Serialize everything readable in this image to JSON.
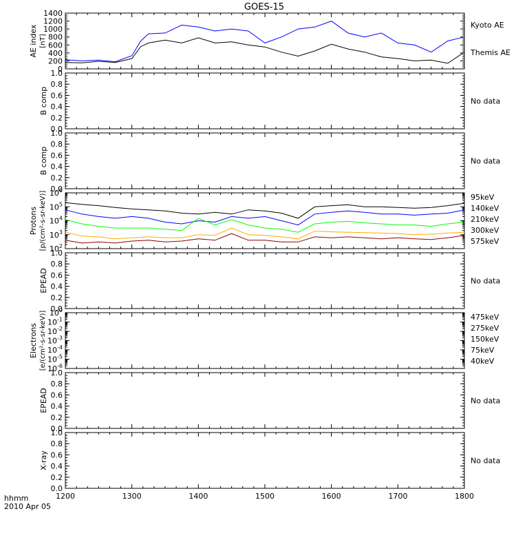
{
  "title": "GOES-15",
  "x_axis": {
    "tick_labels": [
      "1200",
      "1300",
      "1400",
      "1500",
      "1600",
      "1700",
      "1800"
    ],
    "label_line1": "hhmm",
    "label_line2": "2010 Apr 05"
  },
  "chart_data": [
    {
      "type": "line",
      "panel": "ae",
      "ylabel_line1": "AE index",
      "ylabel_line2": "[nT]",
      "ylim": [
        0,
        1400
      ],
      "yticks": [
        0,
        200,
        400,
        600,
        800,
        1000,
        1200,
        1400
      ],
      "ytick_labels": [
        "0",
        "200",
        "400",
        "600",
        "800",
        "1000",
        "1200",
        "1400"
      ],
      "x": [
        1200,
        1215,
        1230,
        1245,
        1300,
        1308,
        1315,
        1330,
        1345,
        1400,
        1415,
        1430,
        1445,
        1500,
        1515,
        1530,
        1545,
        1600,
        1615,
        1630,
        1645,
        1700,
        1715,
        1730,
        1745,
        1800
      ],
      "series": [
        {
          "name": "Kyoto AE",
          "color": "#0000ff",
          "values": [
            230,
            200,
            220,
            180,
            330,
            700,
            880,
            900,
            1100,
            1050,
            950,
            1000,
            950,
            650,
            800,
            1000,
            1050,
            1200,
            900,
            800,
            900,
            650,
            600,
            420,
            700,
            800
          ]
        },
        {
          "name": "Themis AE",
          "color": "#000000",
          "values": [
            160,
            150,
            190,
            160,
            260,
            560,
            650,
            720,
            650,
            780,
            650,
            680,
            600,
            550,
            420,
            320,
            450,
            620,
            500,
            420,
            300,
            260,
            200,
            220,
            140,
            420
          ]
        }
      ]
    },
    {
      "type": "line",
      "panel": "b1",
      "ylabel": "B comp",
      "ylim": [
        0,
        1
      ],
      "ytick_labels": [
        "0.0",
        "0.2",
        "0.4",
        "0.6",
        "0.8",
        "1.0"
      ],
      "note": "No data"
    },
    {
      "type": "line",
      "panel": "b2",
      "ylabel": "B comp",
      "ylim": [
        0,
        1
      ],
      "ytick_labels": [
        "0.0",
        "0.2",
        "0.4",
        "0.6",
        "0.8",
        "1.0"
      ],
      "note": "No data"
    },
    {
      "type": "line",
      "panel": "protons",
      "ylabel_line1": "Protons",
      "ylabel_line2": "[p/(cm²-s-sr-keV)]",
      "yscale": "log",
      "ylim": [
        100,
        1000000
      ],
      "yticks": [
        100,
        1000,
        10000,
        100000,
        1000000
      ],
      "ytick_base": "10",
      "ytick_exponents": [
        "2",
        "3",
        "4",
        "5",
        "6"
      ],
      "x": [
        1200,
        1215,
        1230,
        1245,
        1300,
        1315,
        1330,
        1345,
        1400,
        1415,
        1430,
        1445,
        1500,
        1515,
        1530,
        1545,
        1600,
        1615,
        1630,
        1645,
        1700,
        1715,
        1730,
        1745,
        1800
      ],
      "series": [
        {
          "name": "95keV",
          "color": "#000000",
          "values": [
            200000,
            150000,
            120000,
            90000,
            70000,
            60000,
            50000,
            35000,
            30000,
            40000,
            30000,
            60000,
            50000,
            35000,
            15000,
            100000,
            120000,
            140000,
            100000,
            100000,
            90000,
            80000,
            90000,
            120000,
            180000
          ]
        },
        {
          "name": "140keV",
          "color": "#0000ff",
          "values": [
            60000,
            30000,
            20000,
            15000,
            20000,
            15000,
            8000,
            6000,
            10000,
            8000,
            20000,
            15000,
            20000,
            10000,
            5000,
            30000,
            40000,
            50000,
            40000,
            30000,
            30000,
            25000,
            30000,
            35000,
            60000
          ]
        },
        {
          "name": "210keV",
          "color": "#00ff00",
          "values": [
            12000,
            6000,
            4000,
            3000,
            3000,
            3000,
            2500,
            2000,
            15000,
            5000,
            12000,
            5000,
            3000,
            2500,
            1500,
            6000,
            8000,
            9000,
            7000,
            6000,
            5000,
            5000,
            4000,
            6000,
            8000
          ]
        },
        {
          "name": "300keV",
          "color": "#ffaa00",
          "values": [
            1500,
            800,
            700,
            500,
            600,
            700,
            600,
            600,
            1000,
            900,
            3000,
            1000,
            900,
            700,
            500,
            1800,
            1600,
            1500,
            1400,
            1300,
            1200,
            1000,
            1100,
            1300,
            1500
          ]
        },
        {
          "name": "575keV",
          "color": "#8b0000",
          "values": [
            400,
            250,
            300,
            250,
            350,
            400,
            300,
            350,
            500,
            400,
            1200,
            400,
            400,
            300,
            300,
            700,
            600,
            700,
            600,
            500,
            600,
            500,
            450,
            600,
            900
          ]
        }
      ]
    },
    {
      "type": "line",
      "panel": "epead1",
      "ylabel": "EPEAD",
      "ylim": [
        0,
        1
      ],
      "ytick_labels": [
        "0.0",
        "0.2",
        "0.4",
        "0.6",
        "0.8",
        "1.0"
      ],
      "note": "No data"
    },
    {
      "type": "line",
      "panel": "electrons",
      "ylabel_line1": "Electrons",
      "ylabel_line2": "[e/(cm²-s-sr-keV)]",
      "yscale": "log",
      "ylim": [
        1e-06,
        1
      ],
      "ytick_base": "10",
      "ytick_exponents": [
        "0",
        "-1",
        "-2",
        "-3",
        "-4",
        "-5",
        "-6"
      ],
      "series": [
        {
          "name": "475keV",
          "color": "#8b0000"
        },
        {
          "name": "275keV",
          "color": "#ffaa00"
        },
        {
          "name": "150keV",
          "color": "#00ff00"
        },
        {
          "name": "75keV",
          "color": "#0000ff"
        },
        {
          "name": "40keV",
          "color": "#000000"
        }
      ]
    },
    {
      "type": "line",
      "panel": "epead2",
      "ylabel": "EPEAD",
      "ylim": [
        0,
        1
      ],
      "ytick_labels": [
        "0.0",
        "0.2",
        "0.4",
        "0.6",
        "0.8",
        "1.0"
      ],
      "note": "No data"
    },
    {
      "type": "line",
      "panel": "xray",
      "ylabel": "X-ray",
      "ylim": [
        0,
        1
      ],
      "ytick_labels": [
        "0.0",
        "0.2",
        "0.4",
        "0.6",
        "0.8",
        "1.0"
      ],
      "note": "No data"
    }
  ]
}
